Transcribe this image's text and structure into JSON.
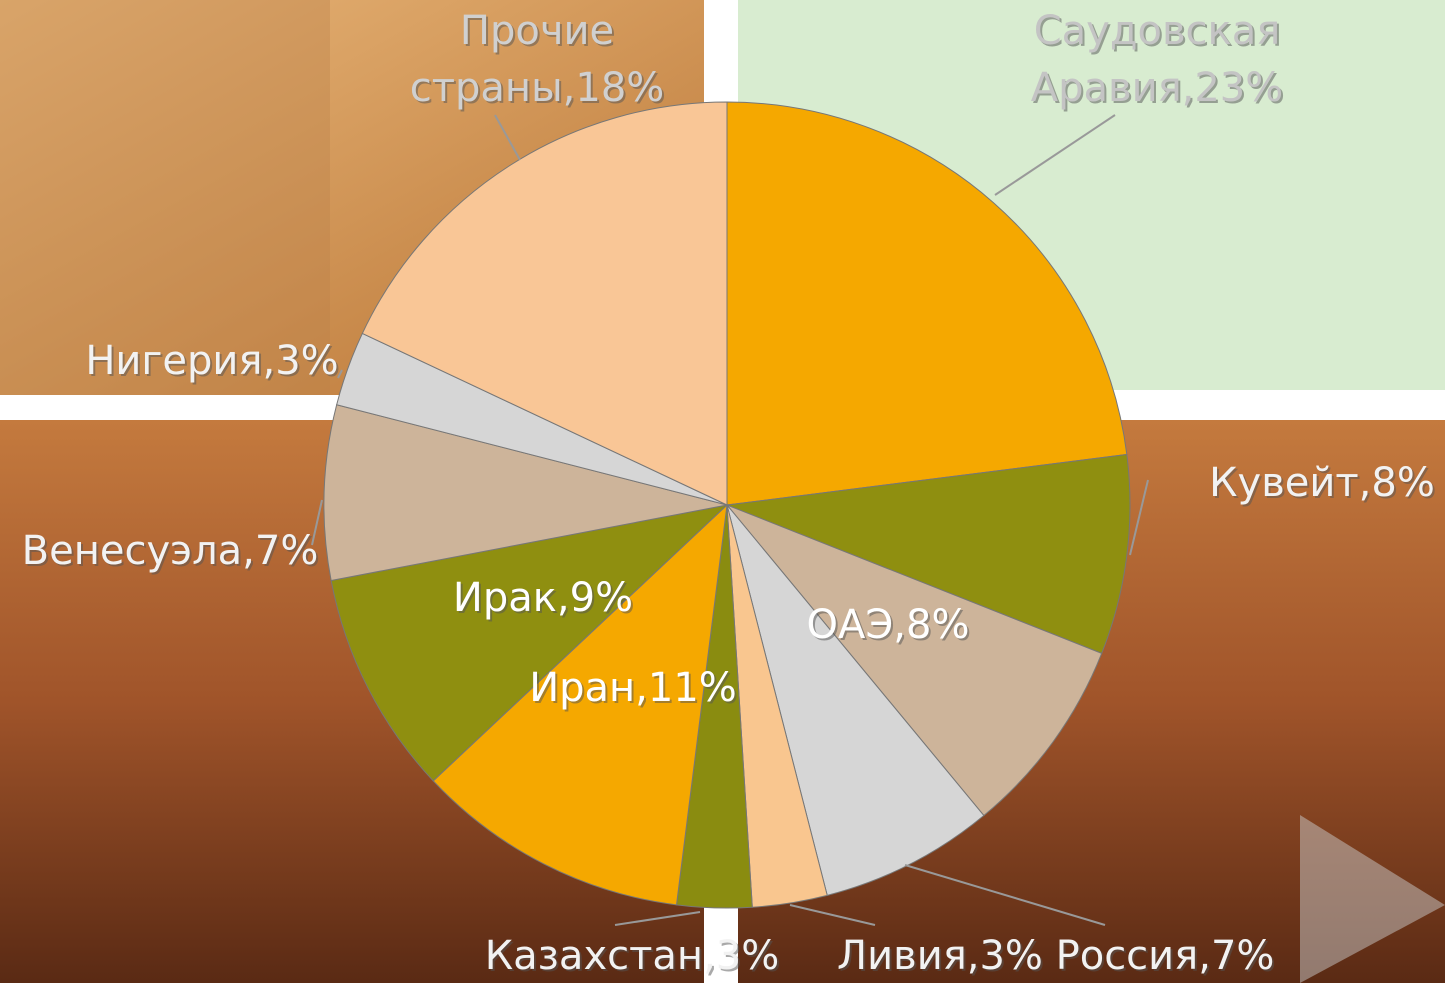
{
  "chart_data": {
    "type": "pie",
    "values": [
      23,
      8,
      8,
      7,
      3,
      3,
      11,
      9,
      7,
      3,
      18
    ],
    "value_labels": [
      [
        "Саудовская",
        "Аравия,23%"
      ],
      [
        "Кувейт,8%"
      ],
      [
        "ОАЭ,8%"
      ],
      [
        "Россия,7%"
      ],
      [
        "Ливия,3%"
      ],
      [
        "Казахстан,3%"
      ],
      [
        "Иран,11%"
      ],
      [
        "Ирак,9%"
      ],
      [
        "Венесуэла,7%"
      ],
      [
        "Нигерия,3%"
      ],
      [
        "Прочие",
        "страны,18%"
      ]
    ],
    "colors": [
      "#f5a800",
      "#8f8f10",
      "#cdb49a",
      "#d6d6d6",
      "#f9c68f",
      "#8a8c10",
      "#f5a800",
      "#8f8f10",
      "#cdb49a",
      "#d6d6d6",
      "#f9c696"
    ]
  }
}
